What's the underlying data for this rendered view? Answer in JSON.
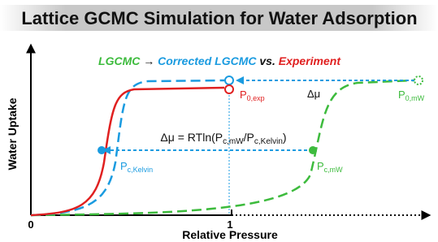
{
  "title": "Lattice GCMC Simulation for Water Adsorption",
  "legend": {
    "lgcmc": "LGCMC",
    "arrow": "→",
    "corrected": "Corrected LGCMC",
    "vs": "vs.",
    "experiment": "Experiment"
  },
  "labels": {
    "p0exp": {
      "base": "P",
      "sub": "0,exp"
    },
    "dmu": "Δμ",
    "p0mw": {
      "base": "P",
      "sub": "0,mW"
    },
    "equation": {
      "lead": "Δμ = RTln(P",
      "sub1": "c,mW",
      "mid": "/P",
      "sub2": "c,Kelvin",
      "tail": ")"
    },
    "pckelvin": {
      "base": "P",
      "sub": "c,Kelvin"
    },
    "pcmw": {
      "base": "P",
      "sub": "c,mW"
    }
  },
  "axes": {
    "y_label": "Water Uptake",
    "x_label": "Relative Pressure",
    "origin": "0",
    "one": "1"
  }
}
